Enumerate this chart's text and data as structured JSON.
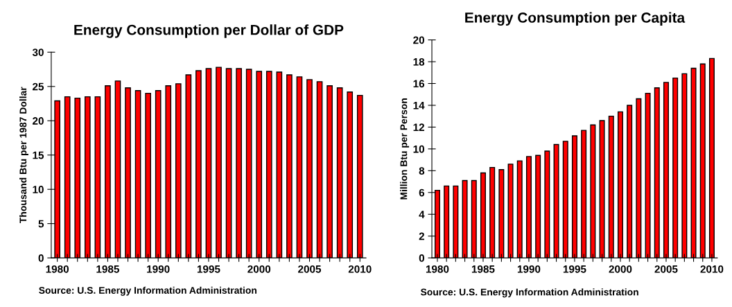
{
  "chart_data": [
    {
      "type": "bar",
      "title": "Energy Consumption per Dollar of GDP",
      "ylabel": "Thousand Btu per 1987 Dollar",
      "categories": [
        "1980",
        null,
        null,
        null,
        null,
        "1985",
        null,
        null,
        null,
        null,
        "1990",
        null,
        null,
        null,
        null,
        "1995",
        null,
        null,
        null,
        null,
        "2000",
        null,
        null,
        null,
        null,
        "2005",
        null,
        null,
        null,
        null,
        "2010"
      ],
      "values": [
        22.9,
        23.5,
        23.3,
        23.5,
        23.5,
        25.1,
        25.8,
        24.8,
        24.4,
        24.0,
        24.4,
        25.1,
        25.4,
        26.7,
        27.3,
        27.6,
        27.8,
        27.6,
        27.6,
        27.5,
        27.2,
        27.2,
        27.1,
        26.7,
        26.4,
        26.0,
        25.7,
        25.1,
        24.8,
        24.2,
        23.7
      ],
      "color": "#ff0000",
      "ylim": [
        0,
        30
      ],
      "yticks": [
        0,
        5,
        10,
        15,
        20,
        25,
        30
      ],
      "grid": false,
      "annotations": [
        "Source: U.S. Energy Information Administration"
      ]
    },
    {
      "type": "bar",
      "title": "Energy Consumption per Capita",
      "ylabel": "Million Btu per Person",
      "categories": [
        "1980",
        null,
        null,
        null,
        null,
        "1985",
        null,
        null,
        null,
        null,
        "1990",
        null,
        null,
        null,
        null,
        "1995",
        null,
        null,
        null,
        null,
        "2000",
        null,
        null,
        null,
        null,
        "2005",
        null,
        null,
        null,
        null,
        "2010"
      ],
      "values": [
        6.2,
        6.6,
        6.6,
        7.1,
        7.1,
        7.8,
        8.3,
        8.1,
        8.6,
        8.9,
        9.3,
        9.4,
        9.8,
        10.4,
        10.7,
        11.2,
        11.7,
        12.2,
        12.6,
        13.0,
        13.4,
        14.0,
        14.6,
        15.1,
        15.6,
        16.1,
        16.5,
        16.9,
        17.4,
        17.8,
        18.3
      ],
      "color": "#ff0000",
      "ylim": [
        0,
        20
      ],
      "yticks": [
        0,
        2,
        4,
        6,
        8,
        10,
        12,
        14,
        16,
        18,
        20
      ],
      "grid": false,
      "annotations": [
        "Source: U.S. Energy Information Administration"
      ]
    }
  ]
}
